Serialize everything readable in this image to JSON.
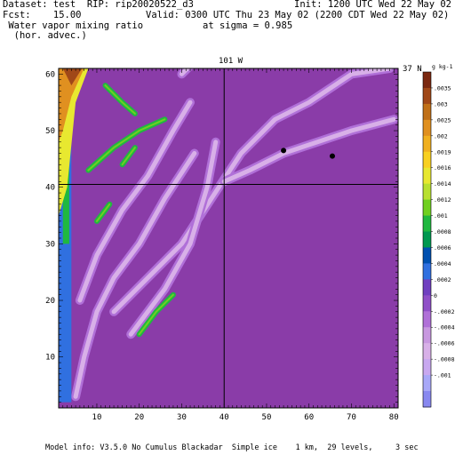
{
  "header": {
    "dataset_line": "Dataset: test  RIP: rip20020522_d3",
    "init_line": "Init: 1200 UTC Wed 22 May 02",
    "fcst_line": "Fcst:    15.00",
    "valid_line": "Valid: 0300 UTC Thu 23 May 02 (2200 CDT Wed 22 May 02)",
    "field_line1": " Water vapor mixing ratio",
    "sigma_line": "at sigma = 0.985",
    "field_line2": "  (hor. advec.)"
  },
  "footer": {
    "model_info": "Model info: V3.5.0 No Cumulus Blackadar  Simple ice    1 km,  29 levels,     3 sec"
  },
  "chart_data": {
    "type": "heatmap",
    "title": "",
    "xlim": [
      1,
      81
    ],
    "ylim": [
      1,
      61
    ],
    "x_ticks": [
      "10",
      "20",
      "30",
      "40",
      "50",
      "60",
      "70",
      "80"
    ],
    "y_ticks": [
      "10",
      "20",
      "30",
      "40",
      "50",
      "60"
    ],
    "crosshair_labels": {
      "lon": "101 W",
      "lat": "37 N"
    },
    "crosshair": {
      "x": 40,
      "y": 40.5
    },
    "colorbar": {
      "units": "g kg-1",
      "labels": [
        ".0035",
        ".003",
        ".0025",
        ".002",
        ".0019",
        ".0016",
        ".0014",
        ".0012",
        ".001",
        ".0008",
        ".0006",
        ".0004",
        ".0002",
        "0",
        "-.0002",
        "-.0004",
        "-.0006",
        "-.0008",
        "-.001"
      ],
      "colors": [
        "#7a2810",
        "#a04818",
        "#c07018",
        "#e09020",
        "#f0b020",
        "#f8d020",
        "#e8e830",
        "#b8e030",
        "#70d020",
        "#20b840",
        "#009850",
        "#0050b0",
        "#3070e0",
        "#7040c0",
        "#9050c8",
        "#b070d8",
        "#c898e0",
        "#d8b0e8",
        "#c8a8f0",
        "#a8a8f8",
        "#8888f0"
      ]
    },
    "markers": [
      {
        "x": 54,
        "y": 46.5
      },
      {
        "x": 65.5,
        "y": 45.5
      }
    ]
  }
}
